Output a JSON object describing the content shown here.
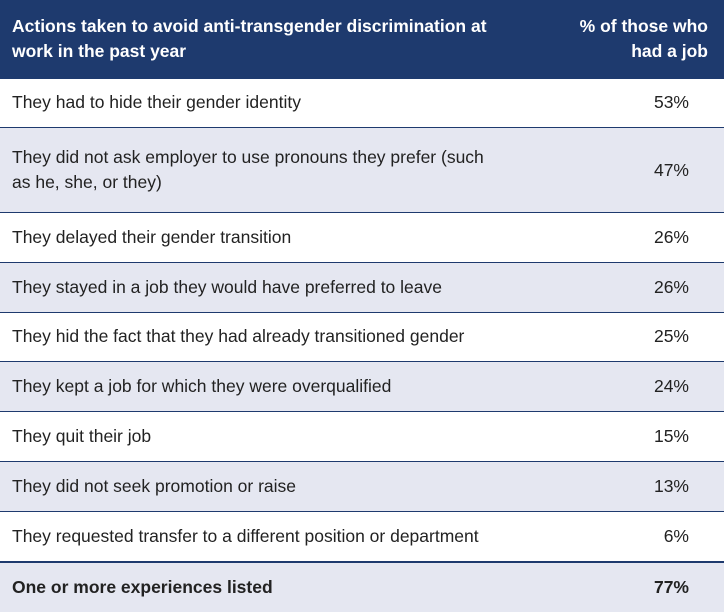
{
  "table": {
    "header": [
      "Actions taken to avoid anti-transgender discrimination at work in the past year",
      "% of those who had a job"
    ],
    "rows": [
      [
        "They had to hide their gender identity",
        "53%"
      ],
      [
        "They did not ask employer to use pronouns they prefer (such as he, she, or they)",
        "47%"
      ],
      [
        "They delayed their gender transition",
        "26%"
      ],
      [
        "They stayed in a job they would have preferred to leave",
        "26%"
      ],
      [
        "They hid the fact that they had already transitioned gender",
        "25%"
      ],
      [
        "They kept a job for which they were overqualified",
        "24%"
      ],
      [
        "They quit their job",
        "15%"
      ],
      [
        "They did not seek promotion or raise",
        "13%"
      ],
      [
        "They requested transfer to a different position or department",
        "6%"
      ]
    ],
    "total": [
      "One or more experiences listed",
      "77%"
    ]
  }
}
